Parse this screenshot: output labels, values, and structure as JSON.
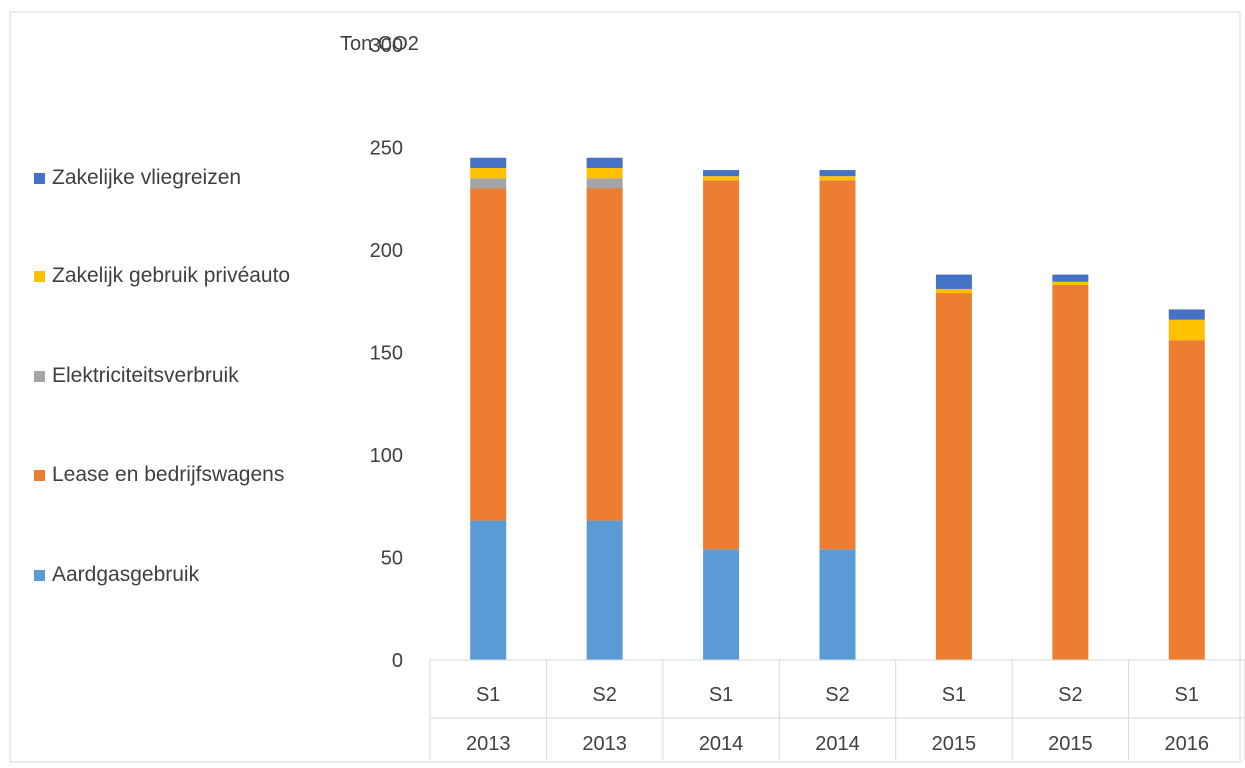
{
  "chart_data": {
    "type": "bar",
    "stacked": true,
    "ylabel": "Ton CO2",
    "ylim": [
      0,
      300
    ],
    "y_ticks": [
      "0",
      "50",
      "100",
      "150",
      "200",
      "250",
      "300"
    ],
    "categories": [
      {
        "sublabel": "S1",
        "year": "2013"
      },
      {
        "sublabel": "S2",
        "year": "2013"
      },
      {
        "sublabel": "S1",
        "year": "2014"
      },
      {
        "sublabel": "S2",
        "year": "2014"
      },
      {
        "sublabel": "S1",
        "year": "2015"
      },
      {
        "sublabel": "S2",
        "year": "2015"
      },
      {
        "sublabel": "S1",
        "year": "2016"
      }
    ],
    "series": [
      {
        "name": "Aardgasgebruik",
        "color": "#5B9BD5",
        "values": [
          68,
          68,
          54,
          54,
          0,
          0,
          0
        ]
      },
      {
        "name": "Lease en bedrijfswagens",
        "color": "#ED7D31",
        "values": [
          162,
          162,
          180,
          180,
          179,
          183,
          156
        ]
      },
      {
        "name": "Elektriciteitsverbruik",
        "color": "#A5A5A5",
        "values": [
          5,
          5,
          0,
          0,
          0,
          0,
          0
        ]
      },
      {
        "name": "Zakelijk gebruik privéauto",
        "color": "#FFC000",
        "values": [
          5,
          5,
          2,
          2,
          2,
          1.5,
          10
        ]
      },
      {
        "name": "Zakelijke vliegreizen",
        "color": "#4472C4",
        "values": [
          5,
          5,
          3,
          3,
          7,
          3.5,
          5
        ]
      }
    ],
    "legend_order": [
      "Zakelijke vliegreizen",
      "Zakelijk gebruik privéauto",
      "Elektriciteitsverbruik",
      "Lease en bedrijfswagens",
      "Aardgasgebruik"
    ],
    "legend_position": "left",
    "grid": false
  }
}
